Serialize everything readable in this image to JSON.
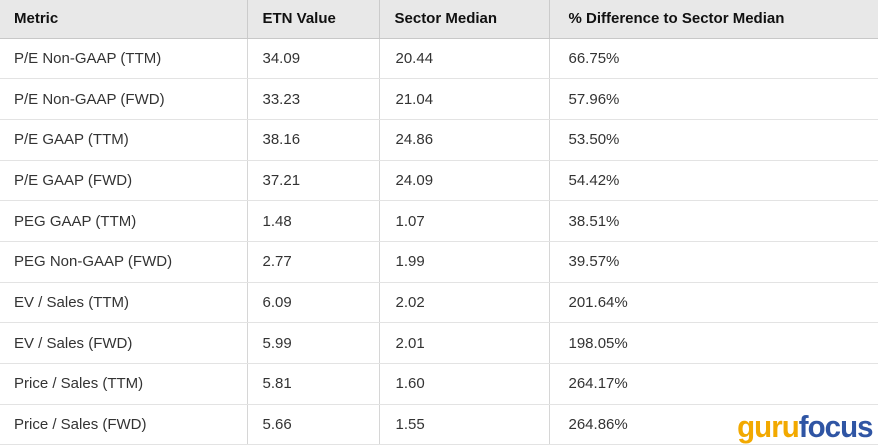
{
  "table": {
    "columns": [
      "Metric",
      "ETN Value",
      "Sector Median",
      "% Difference to Sector Median"
    ],
    "rows": [
      {
        "metric": "P/E Non-GAAP (TTM)",
        "etn_value": "34.09",
        "sector_median": "20.44",
        "pct_difference": "66.75%"
      },
      {
        "metric": "P/E Non-GAAP (FWD)",
        "etn_value": "33.23",
        "sector_median": "21.04",
        "pct_difference": "57.96%"
      },
      {
        "metric": "P/E GAAP (TTM)",
        "etn_value": "38.16",
        "sector_median": "24.86",
        "pct_difference": "53.50%"
      },
      {
        "metric": "P/E GAAP (FWD)",
        "etn_value": "37.21",
        "sector_median": "24.09",
        "pct_difference": "54.42%"
      },
      {
        "metric": "PEG GAAP (TTM)",
        "etn_value": "1.48",
        "sector_median": "1.07",
        "pct_difference": "38.51%"
      },
      {
        "metric": "PEG Non-GAAP (FWD)",
        "etn_value": "2.77",
        "sector_median": "1.99",
        "pct_difference": "39.57%"
      },
      {
        "metric": "EV / Sales (TTM)",
        "etn_value": "6.09",
        "sector_median": "2.02",
        "pct_difference": "201.64%"
      },
      {
        "metric": "EV / Sales (FWD)",
        "etn_value": "5.99",
        "sector_median": "2.01",
        "pct_difference": "198.05%"
      },
      {
        "metric": "Price / Sales (TTM)",
        "etn_value": "5.81",
        "sector_median": "1.60",
        "pct_difference": "264.17%"
      },
      {
        "metric": "Price / Sales (FWD)",
        "etn_value": "5.66",
        "sector_median": "1.55",
        "pct_difference": "264.86%"
      }
    ]
  },
  "logo": {
    "guru_text": "guru",
    "focus_text": "focus",
    "guru_color": "#F2A900",
    "focus_color": "#2F55A4"
  }
}
